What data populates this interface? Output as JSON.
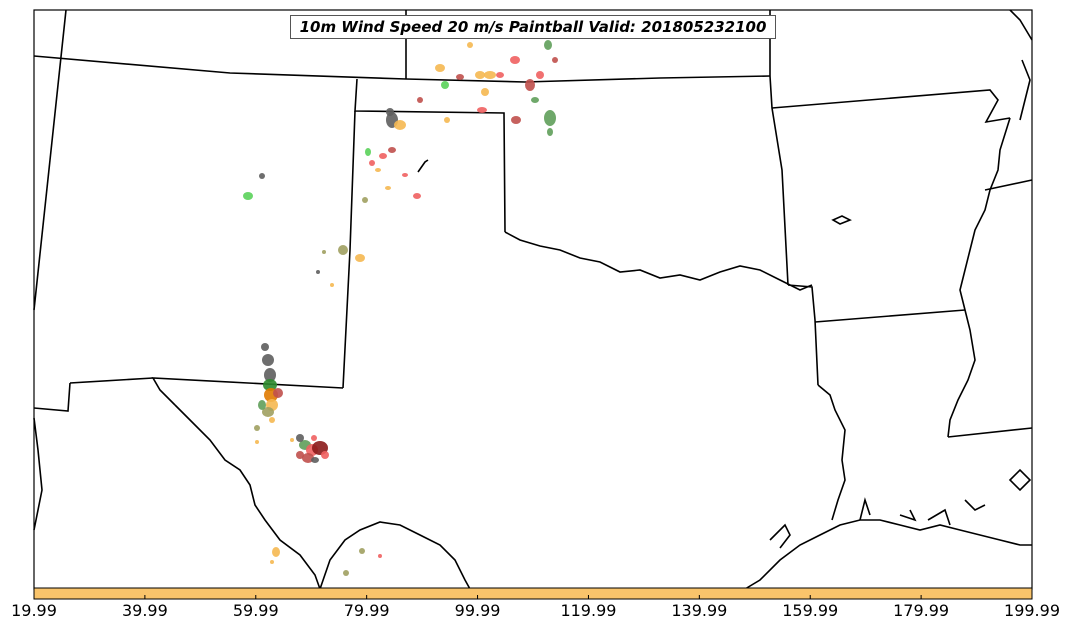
{
  "title": "10m Wind Speed 20 m/s Paintball Valid: 201805232100",
  "colorbar": {
    "color": "#f9c46b",
    "ticks": [
      "19.99",
      "39.99",
      "59.99",
      "79.99",
      "99.99",
      "119.99",
      "139.99",
      "159.99",
      "179.99",
      "199.99"
    ]
  },
  "paintball_colors": [
    "#f06060",
    "#f5b851",
    "#5f9e5a",
    "#5e5e5e",
    "#5ad15a",
    "#a0a060",
    "#c0504d",
    "#e07a00",
    "#2e8b2e",
    "#8b1a1a"
  ]
}
